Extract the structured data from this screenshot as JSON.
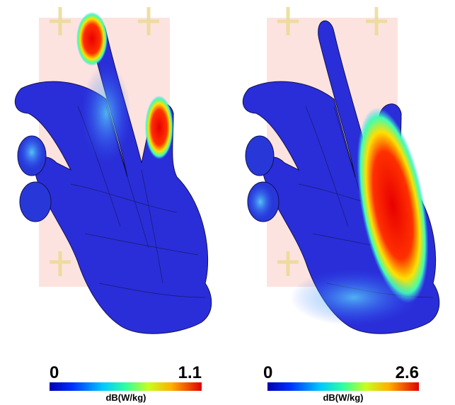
{
  "panels": [
    {
      "colorbar": {
        "min": 0,
        "max": 1.1,
        "unit": "dB(W/kg)"
      }
    },
    {
      "colorbar": {
        "min": 0,
        "max": 2.6,
        "unit": "dB(W/kg)"
      }
    }
  ]
}
